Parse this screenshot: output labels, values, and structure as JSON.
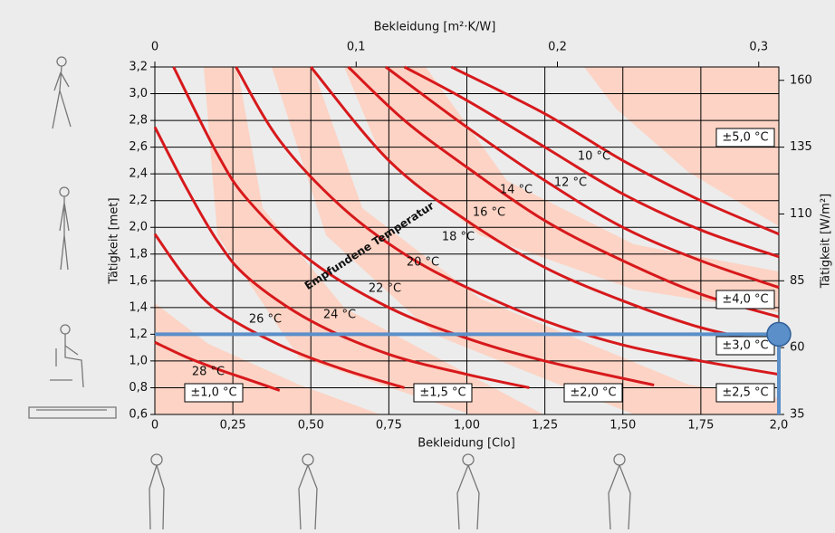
{
  "chart_data": {
    "type": "line",
    "x_label": "Bekleidung [Clo]",
    "x2_label": "Bekleidung [m²·K/W]",
    "y_label": "Tätigkeit [met]",
    "y2_label": "Tätigkeit [W/m²]",
    "annotation": "Empfundene Temperatur",
    "xlim": [
      0,
      2.0
    ],
    "xticks": [
      {
        "value": 0,
        "label": "0"
      },
      {
        "value": 0.25,
        "label": "0,25"
      },
      {
        "value": 0.5,
        "label": "0,50"
      },
      {
        "value": 0.75,
        "label": "0,75"
      },
      {
        "value": 1.0,
        "label": "1,00"
      },
      {
        "value": 1.25,
        "label": "1,25"
      },
      {
        "value": 1.5,
        "label": "1,50"
      },
      {
        "value": 1.75,
        "label": "1,75"
      },
      {
        "value": 2.0,
        "label": "2,0"
      }
    ],
    "x2lim": [
      0,
      0.31
    ],
    "x2ticks": [
      0,
      {
        "value": 0.1,
        "label": "0,1"
      },
      {
        "value": 0.2,
        "label": "0,2"
      },
      {
        "value": 0.3,
        "label": "0,3"
      }
    ],
    "ylim": [
      0.6,
      3.2
    ],
    "yticks": [
      {
        "value": 0.6,
        "label": "0,6"
      },
      {
        "value": 0.8,
        "label": "0,8"
      },
      {
        "value": 1.0,
        "label": "1,0"
      },
      {
        "value": 1.2,
        "label": "1,2"
      },
      {
        "value": 1.4,
        "label": "1,4"
      },
      {
        "value": 1.6,
        "label": "1,6"
      },
      {
        "value": 1.8,
        "label": "1,8"
      },
      {
        "value": 2.0,
        "label": "2,0"
      },
      {
        "value": 2.2,
        "label": "2,2"
      },
      {
        "value": 2.4,
        "label": "2,4"
      },
      {
        "value": 2.6,
        "label": "2,6"
      },
      {
        "value": 2.8,
        "label": "2,8"
      },
      {
        "value": 3.0,
        "label": "3,0"
      },
      {
        "value": 3.2,
        "label": "3,2"
      }
    ],
    "y2lim": [
      35,
      165
    ],
    "y2ticks": [
      35,
      60,
      85,
      110,
      135,
      160
    ],
    "grid": true,
    "series": [
      {
        "name": "28 °C",
        "color": "#d7191c",
        "x": [
          0,
          0.1,
          0.2,
          0.3,
          0.4
        ],
        "values": [
          1.14,
          1.03,
          0.94,
          0.86,
          0.78
        ]
      },
      {
        "name": "26 °C",
        "color": "#d7191c",
        "x": [
          0,
          0.1,
          0.2,
          0.4,
          0.6,
          0.8
        ],
        "values": [
          1.95,
          1.62,
          1.38,
          1.12,
          0.94,
          0.8
        ]
      },
      {
        "name": "24 °C",
        "color": "#d7191c",
        "x": [
          0,
          0.1,
          0.2,
          0.3,
          0.5,
          0.75,
          1.0,
          1.2
        ],
        "values": [
          2.75,
          2.3,
          1.9,
          1.62,
          1.3,
          1.05,
          0.9,
          0.8
        ]
      },
      {
        "name": "22 °C",
        "color": "#d7191c",
        "x": [
          0.06,
          0.2,
          0.3,
          0.5,
          0.75,
          1.0,
          1.25,
          1.6
        ],
        "values": [
          3.2,
          2.55,
          2.2,
          1.75,
          1.4,
          1.17,
          1.0,
          0.82
        ]
      },
      {
        "name": "20 °C",
        "color": "#d7191c",
        "x": [
          0.26,
          0.4,
          0.6,
          0.8,
          1.0,
          1.25,
          1.5,
          1.75,
          2.0
        ],
        "values": [
          3.2,
          2.65,
          2.15,
          1.8,
          1.55,
          1.3,
          1.12,
          1.0,
          0.9
        ]
      },
      {
        "name": "18 °C",
        "color": "#d7191c",
        "x": [
          0.5,
          0.75,
          1.0,
          1.25,
          1.5,
          1.75,
          2.0
        ],
        "values": [
          3.2,
          2.5,
          2.05,
          1.7,
          1.45,
          1.25,
          1.12
        ]
      },
      {
        "name": "16 °C",
        "color": "#d7191c",
        "x": [
          0.62,
          0.8,
          1.0,
          1.25,
          1.5,
          1.75,
          2.0
        ],
        "values": [
          3.2,
          2.8,
          2.45,
          2.05,
          1.75,
          1.5,
          1.33
        ]
      },
      {
        "name": "14 °C",
        "color": "#d7191c",
        "x": [
          0.74,
          1.0,
          1.25,
          1.5,
          1.75,
          2.0
        ],
        "values": [
          3.2,
          2.75,
          2.35,
          2.0,
          1.75,
          1.55
        ]
      },
      {
        "name": "12 °C",
        "color": "#d7191c",
        "x": [
          0.8,
          1.0,
          1.25,
          1.5,
          1.75,
          2.0
        ],
        "values": [
          3.2,
          2.95,
          2.6,
          2.25,
          1.98,
          1.78
        ]
      },
      {
        "name": "10 °C",
        "color": "#d7191c",
        "x": [
          0.95,
          1.25,
          1.5,
          1.75,
          2.0
        ],
        "values": [
          3.2,
          2.85,
          2.5,
          2.2,
          1.95
        ]
      }
    ],
    "tolerances": [
      "±1,0 °C",
      "±1,5 °C",
      "±2,0 °C",
      "±2,5 °C",
      "±3,0 °C",
      "±4,0 °C",
      "±5,0 °C"
    ],
    "marker": {
      "x": 2.0,
      "y": 1.2,
      "color": "#5b8fc9"
    }
  }
}
